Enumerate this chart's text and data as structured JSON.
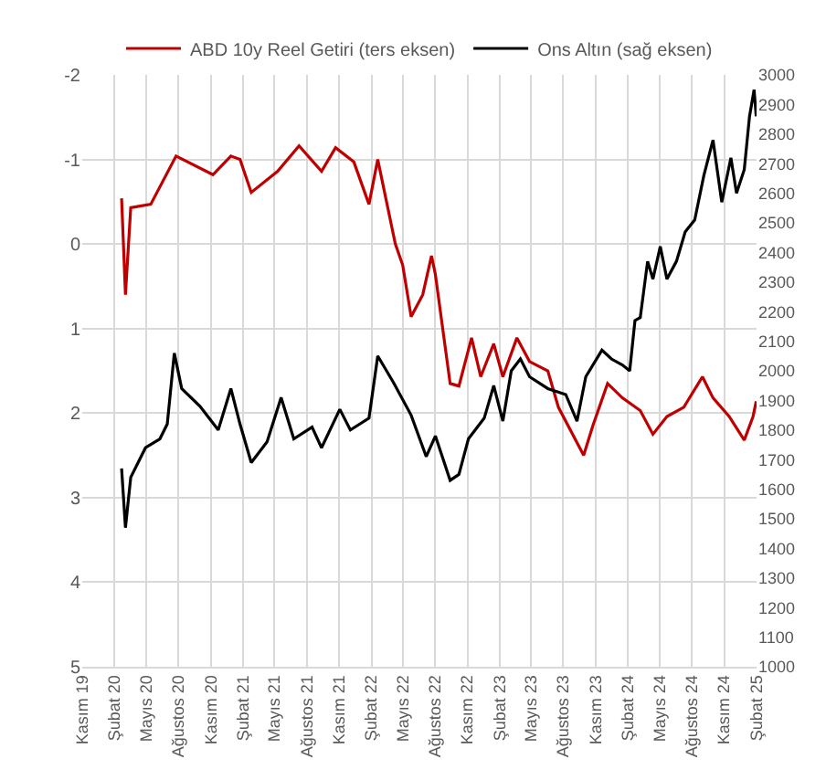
{
  "chart_data": {
    "type": "line",
    "xlim": [
      "2019-11-01",
      "2025-02-01"
    ],
    "xticks": [
      {
        "value": "2019-11-01",
        "label": "Kasım 19"
      },
      {
        "value": "2020-02-01",
        "label": "Şubat 20"
      },
      {
        "value": "2020-05-01",
        "label": "Mayıs 20"
      },
      {
        "value": "2020-08-01",
        "label": "Ağustos 20"
      },
      {
        "value": "2020-11-01",
        "label": "Kasım 20"
      },
      {
        "value": "2021-02-01",
        "label": "Şubat 21"
      },
      {
        "value": "2021-05-01",
        "label": "Mayıs 21"
      },
      {
        "value": "2021-08-01",
        "label": "Ağustos 21"
      },
      {
        "value": "2021-11-01",
        "label": "Kasım 21"
      },
      {
        "value": "2022-02-01",
        "label": "Şubat 22"
      },
      {
        "value": "2022-05-01",
        "label": "Mayıs 22"
      },
      {
        "value": "2022-08-01",
        "label": "Ağustos 22"
      },
      {
        "value": "2022-11-01",
        "label": "Kasım 22"
      },
      {
        "value": "2023-02-01",
        "label": "Şubat 23"
      },
      {
        "value": "2023-05-01",
        "label": "Mayıs 23"
      },
      {
        "value": "2023-08-01",
        "label": "Ağustos 23"
      },
      {
        "value": "2023-11-01",
        "label": "Kasım 23"
      },
      {
        "value": "2024-02-01",
        "label": "Şubat 24"
      },
      {
        "value": "2024-05-01",
        "label": "Mayıs 24"
      },
      {
        "value": "2024-08-01",
        "label": "Ağustos 24"
      },
      {
        "value": "2024-11-01",
        "label": "Kasım 24"
      },
      {
        "value": "2025-02-01",
        "label": "Şubat 25"
      }
    ],
    "ylim": [
      5,
      -2
    ],
    "yticks": [
      -2,
      -1,
      0,
      1,
      2,
      3,
      4,
      5
    ],
    "y2lim": [
      1000,
      3000
    ],
    "y2ticks": [
      1000,
      1100,
      1200,
      1300,
      1400,
      1500,
      1600,
      1700,
      1800,
      1900,
      2000,
      2100,
      2200,
      2300,
      2400,
      2500,
      2600,
      2700,
      2800,
      2900,
      3000
    ],
    "grid": true,
    "legend": "top",
    "marker": "none",
    "line_style": "solid",
    "series": [
      {
        "name": "ABD 10y Reel Getiri (ters eksen)",
        "color": "#c00000",
        "x": [
          "2020-02-21",
          "2020-03-03",
          "2020-03-18",
          "2020-05-14",
          "2020-07-25",
          "2020-11-07",
          "2020-12-28",
          "2021-01-23",
          "2021-02-24",
          "2021-05-10",
          "2021-07-10",
          "2021-09-12",
          "2021-10-22",
          "2021-12-13",
          "2022-01-25",
          "2022-02-19",
          "2022-03-16",
          "2022-04-10",
          "2022-05-01",
          "2022-05-25",
          "2022-06-27",
          "2022-07-22",
          "2022-08-02",
          "2022-09-13",
          "2022-10-08",
          "2022-11-13",
          "2022-12-09",
          "2023-01-15",
          "2023-02-10",
          "2023-03-22",
          "2023-04-27",
          "2023-06-18",
          "2023-07-18",
          "2023-09-28",
          "2023-10-24",
          "2023-12-05",
          "2024-01-16",
          "2024-03-07",
          "2024-04-12",
          "2024-05-22",
          "2024-07-09",
          "2024-08-31",
          "2024-09-30",
          "2024-11-15",
          "2024-12-28",
          "2025-01-22",
          "2025-01-31"
        ],
        "values": [
          -0.54,
          0.6,
          -0.43,
          -0.47,
          -1.04,
          -0.82,
          -1.04,
          -1.0,
          -0.61,
          -0.86,
          -1.16,
          -0.86,
          -1.14,
          -0.97,
          -0.47,
          -1.0,
          -0.5,
          0.0,
          0.25,
          0.86,
          0.6,
          0.14,
          0.36,
          1.65,
          1.68,
          1.11,
          1.57,
          1.18,
          1.57,
          1.11,
          1.39,
          1.5,
          1.93,
          2.5,
          2.15,
          1.65,
          1.82,
          1.97,
          2.25,
          2.04,
          1.93,
          1.57,
          1.82,
          2.04,
          2.32,
          2.04,
          1.86
        ]
      },
      {
        "name": "Ons Altın (sağ eksen)",
        "color": "#000000",
        "axis": "y2",
        "x": [
          "2020-02-21",
          "2020-03-03",
          "2020-03-18",
          "2020-04-29",
          "2020-06-09",
          "2020-06-30",
          "2020-07-20",
          "2020-08-10",
          "2020-10-01",
          "2020-10-27",
          "2020-11-22",
          "2020-12-28",
          "2021-01-23",
          "2021-02-24",
          "2021-04-10",
          "2021-05-20",
          "2021-06-25",
          "2021-08-16",
          "2021-09-12",
          "2021-11-03",
          "2021-12-03",
          "2022-01-25",
          "2022-02-19",
          "2022-04-05",
          "2022-05-25",
          "2022-07-07",
          "2022-08-02",
          "2022-09-13",
          "2022-10-08",
          "2022-11-04",
          "2022-12-19",
          "2023-01-15",
          "2023-02-10",
          "2023-03-06",
          "2023-04-01",
          "2023-04-27",
          "2023-06-18",
          "2023-08-08",
          "2023-09-09",
          "2023-10-04",
          "2023-11-19",
          "2023-12-16",
          "2024-01-16",
          "2024-02-06",
          "2024-02-21",
          "2024-03-07",
          "2024-03-28",
          "2024-04-12",
          "2024-05-03",
          "2024-05-22",
          "2024-06-18",
          "2024-07-13",
          "2024-08-09",
          "2024-09-04",
          "2024-09-30",
          "2024-10-25",
          "2024-11-20",
          "2024-12-06",
          "2024-12-28",
          "2025-01-12",
          "2025-01-25",
          "2025-01-31"
        ],
        "values": [
          1670,
          1470,
          1640,
          1740,
          1770,
          1820,
          2060,
          1940,
          1880,
          1840,
          1800,
          1940,
          1820,
          1690,
          1760,
          1910,
          1770,
          1810,
          1740,
          1870,
          1800,
          1840,
          2050,
          1960,
          1850,
          1710,
          1780,
          1630,
          1650,
          1770,
          1840,
          1950,
          1830,
          2000,
          2040,
          1980,
          1940,
          1920,
          1830,
          1980,
          2070,
          2040,
          2020,
          2000,
          2170,
          2180,
          2370,
          2310,
          2420,
          2310,
          2370,
          2470,
          2510,
          2660,
          2780,
          2570,
          2720,
          2600,
          2680,
          2860,
          2950,
          2860
        ]
      }
    ]
  }
}
